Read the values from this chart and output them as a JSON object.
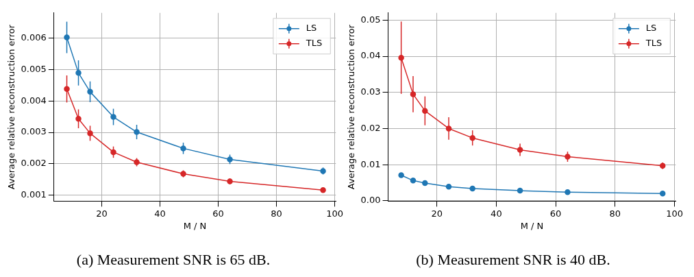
{
  "chart_data": [
    {
      "type": "line",
      "title": "(a) Measurement SNR is 65 dB.",
      "xlabel": "M / N",
      "ylabel": "Average relative reconstruction error",
      "x": [
        8,
        12,
        16,
        24,
        32,
        48,
        64,
        96
      ],
      "series": [
        {
          "name": "LS",
          "color": "#1f77b4",
          "values": [
            0.00602,
            0.00489,
            0.00429,
            0.00349,
            0.00301,
            0.00249,
            0.00214,
            0.00177
          ],
          "errors": [
            0.0005,
            0.0004,
            0.00033,
            0.00026,
            0.00023,
            0.00018,
            0.00015,
            0.00011
          ]
        },
        {
          "name": "TLS",
          "color": "#d62728",
          "values": [
            0.00438,
            0.00343,
            0.00297,
            0.00237,
            0.00205,
            0.00168,
            0.00144,
            0.00116
          ],
          "errors": [
            0.00043,
            0.0003,
            0.00024,
            0.00018,
            0.00013,
            0.00011,
            9e-05,
            7e-05
          ]
        }
      ],
      "xlim": [
        3.6,
        100.4
      ],
      "xticks": [
        20,
        40,
        60,
        80,
        100
      ],
      "ylim": [
        0.00081,
        0.0068
      ],
      "yticks": [
        0.001,
        0.002,
        0.003,
        0.004,
        0.005,
        0.006
      ],
      "grid": true,
      "legend": "top right",
      "marker": "circle",
      "line_style": "solid"
    },
    {
      "type": "line",
      "title": "(b) Measurement SNR is 40 dB.",
      "xlabel": "M / N",
      "ylabel": "Average relative reconstruction error",
      "x": [
        8,
        12,
        16,
        24,
        32,
        48,
        64,
        96
      ],
      "series": [
        {
          "name": "LS",
          "color": "#1f77b4",
          "values": [
            0.0071,
            0.0056,
            0.0049,
            0.0039,
            0.0034,
            0.0028,
            0.0024,
            0.002
          ]
        },
        {
          "name": "TLS",
          "color": "#d62728",
          "values": [
            0.0396,
            0.0295,
            0.0249,
            0.02,
            0.0174,
            0.0141,
            0.0122,
            0.0097
          ],
          "errors": [
            0.01,
            0.005,
            0.004,
            0.0031,
            0.0021,
            0.0017,
            0.0014,
            0.0009
          ]
        }
      ],
      "xlim": [
        3.6,
        100.4
      ],
      "xticks": [
        20,
        40,
        60,
        80,
        100
      ],
      "ylim": [
        -0.0001,
        0.052
      ],
      "yticks": [
        {
          "value": 0,
          "label": "0.00"
        },
        {
          "value": 0.01,
          "label": "0.01"
        },
        {
          "value": 0.02,
          "label": "0.02"
        },
        {
          "value": 0.03,
          "label": "0.03"
        },
        {
          "value": 0.04,
          "label": "0.04"
        },
        {
          "value": 0.05,
          "label": "0.05"
        }
      ],
      "grid": true,
      "legend": "top right",
      "marker": "circle",
      "line_style": "solid"
    }
  ]
}
